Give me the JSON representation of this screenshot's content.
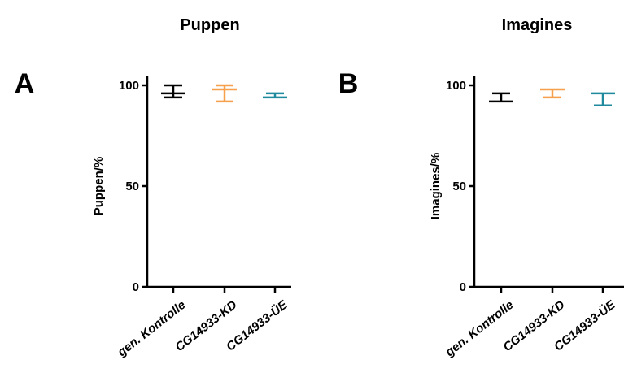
{
  "chart_data": [
    {
      "type": "scatter",
      "panel_label": "A",
      "title": "Puppen",
      "ylabel": "Puppen/%",
      "xlabel": "",
      "categories": [
        "gen. Kontrolle",
        "CG14933-KD",
        "CG14933-ÜE"
      ],
      "ylim": [
        0,
        100
      ],
      "yticks": [
        0,
        50,
        100
      ],
      "series": [
        {
          "mean": 96,
          "low": 94,
          "high": 100,
          "color": "#000000"
        },
        {
          "mean": 98,
          "low": 92,
          "high": 100,
          "color": "#f6a04d"
        },
        {
          "mean": 94,
          "low": 94,
          "high": 96,
          "color": "#1f8a9e"
        }
      ],
      "grid": false,
      "legend": "none"
    },
    {
      "type": "scatter",
      "panel_label": "B",
      "title": "Imagines",
      "ylabel": "Imagines/%",
      "xlabel": "",
      "categories": [
        "gen. Kontrolle",
        "CG14933-KD",
        "CG14933-ÜE"
      ],
      "ylim": [
        0,
        100
      ],
      "yticks": [
        0,
        50,
        100
      ],
      "series": [
        {
          "mean": 92,
          "low": 92,
          "high": 96,
          "color": "#000000"
        },
        {
          "mean": 98,
          "low": 94,
          "high": 98,
          "color": "#f6a04d"
        },
        {
          "mean": 96,
          "low": 90,
          "high": 96,
          "color": "#1f8a9e"
        }
      ],
      "grid": false,
      "legend": "none"
    }
  ]
}
